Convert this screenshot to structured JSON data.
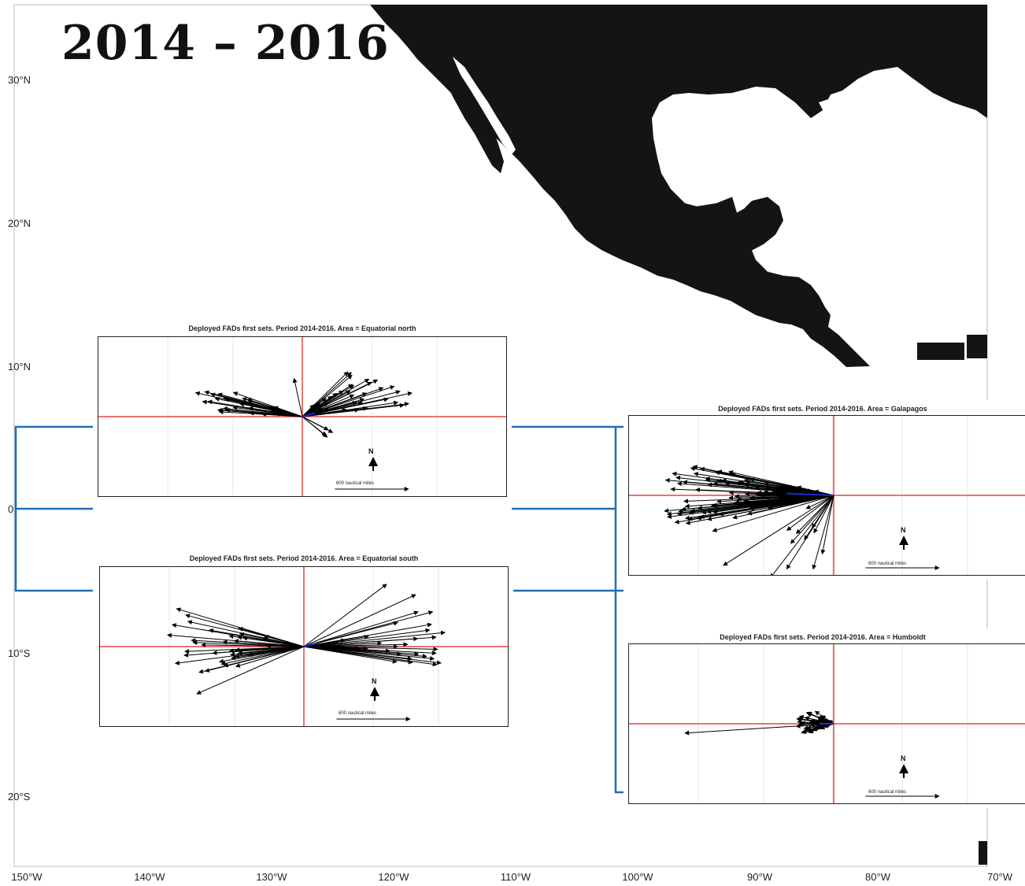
{
  "title": "2014 – 2016",
  "lat_labels": [
    "30°N",
    "20°N",
    "10°N",
    "0",
    "10°S",
    "20°S"
  ],
  "lon_labels": [
    "150°W",
    "140°W",
    "130°W",
    "120°W",
    "110°W",
    "100°W",
    "90°W",
    "80°W",
    "70°W"
  ],
  "colors": {
    "land": "#141414",
    "bracket": "#1f6fb5",
    "crosshair": "#e8453c",
    "arrows": "#000000",
    "mean_arrow": "#1a2bd6"
  },
  "panels": [
    {
      "id": "equatorial-north",
      "title": "Deployed FADs first sets. Period 2014-2016. Area = Equatorial north",
      "north_label": "N",
      "scale_label": "600 nautical miles"
    },
    {
      "id": "equatorial-south",
      "title": "Deployed FADs first sets. Period 2014-2016. Area = Equatorial south",
      "north_label": "N",
      "scale_label": "600 nautical miles"
    },
    {
      "id": "galapagos",
      "title": "Deployed FADs first sets. Period 2014-2016. Area = Galapagos",
      "north_label": "N",
      "scale_label": "600 nautical miles"
    },
    {
      "id": "humboldt",
      "title": "Deployed FADs first sets. Period 2014-2016. Area = Humboldt",
      "north_label": "N",
      "scale_label": "600 nautical miles"
    }
  ]
}
